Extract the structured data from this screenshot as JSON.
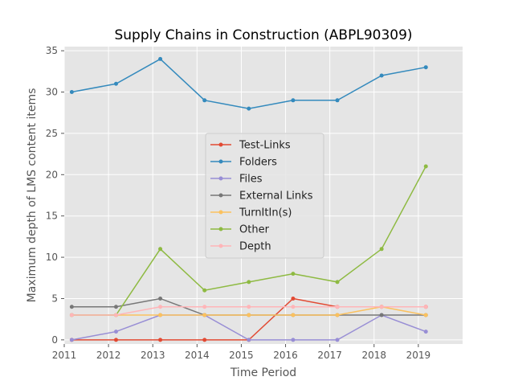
{
  "chart_data": {
    "type": "line",
    "title": "Supply Chains in Construction (ABPL90309)",
    "xlabel": "Time Period",
    "ylabel": "Maximum depth of LMS content items",
    "xlim": [
      2011,
      2020
    ],
    "ylim": [
      -0.5,
      35.5
    ],
    "xticks": [
      2011,
      2012,
      2013,
      2014,
      2015,
      2016,
      2017,
      2018,
      2019
    ],
    "yticks": [
      0,
      5,
      10,
      15,
      20,
      25,
      30,
      35
    ],
    "x": [
      2011.17,
      2012.17,
      2013.17,
      2014.17,
      2015.17,
      2016.17,
      2017.17,
      2018.17,
      2019.17
    ],
    "grid": true,
    "legend_position": "center",
    "series": [
      {
        "name": "Test-Links",
        "color": "#E24A33",
        "values": [
          0,
          0,
          0,
          0,
          0,
          5,
          4,
          4,
          4
        ]
      },
      {
        "name": "Folders",
        "color": "#348ABD",
        "values": [
          30,
          31,
          34,
          29,
          28,
          29,
          29,
          32,
          33
        ]
      },
      {
        "name": "Files",
        "color": "#988ED5",
        "values": [
          0,
          1,
          3,
          3,
          0,
          0,
          0,
          3,
          1
        ]
      },
      {
        "name": "External Links",
        "color": "#777777",
        "values": [
          4,
          4,
          5,
          3,
          3,
          3,
          3,
          3,
          3
        ]
      },
      {
        "name": "TurnItIn(s)",
        "color": "#FBC15E",
        "values": [
          3,
          3,
          3,
          3,
          3,
          3,
          3,
          4,
          3
        ]
      },
      {
        "name": "Other",
        "color": "#8EBA42",
        "values": [
          3,
          3,
          11,
          6,
          7,
          8,
          7,
          11,
          21
        ]
      },
      {
        "name": "Depth",
        "color": "#FFB5B8",
        "values": [
          3,
          3,
          4,
          4,
          4,
          4,
          4,
          4,
          4
        ]
      }
    ]
  }
}
